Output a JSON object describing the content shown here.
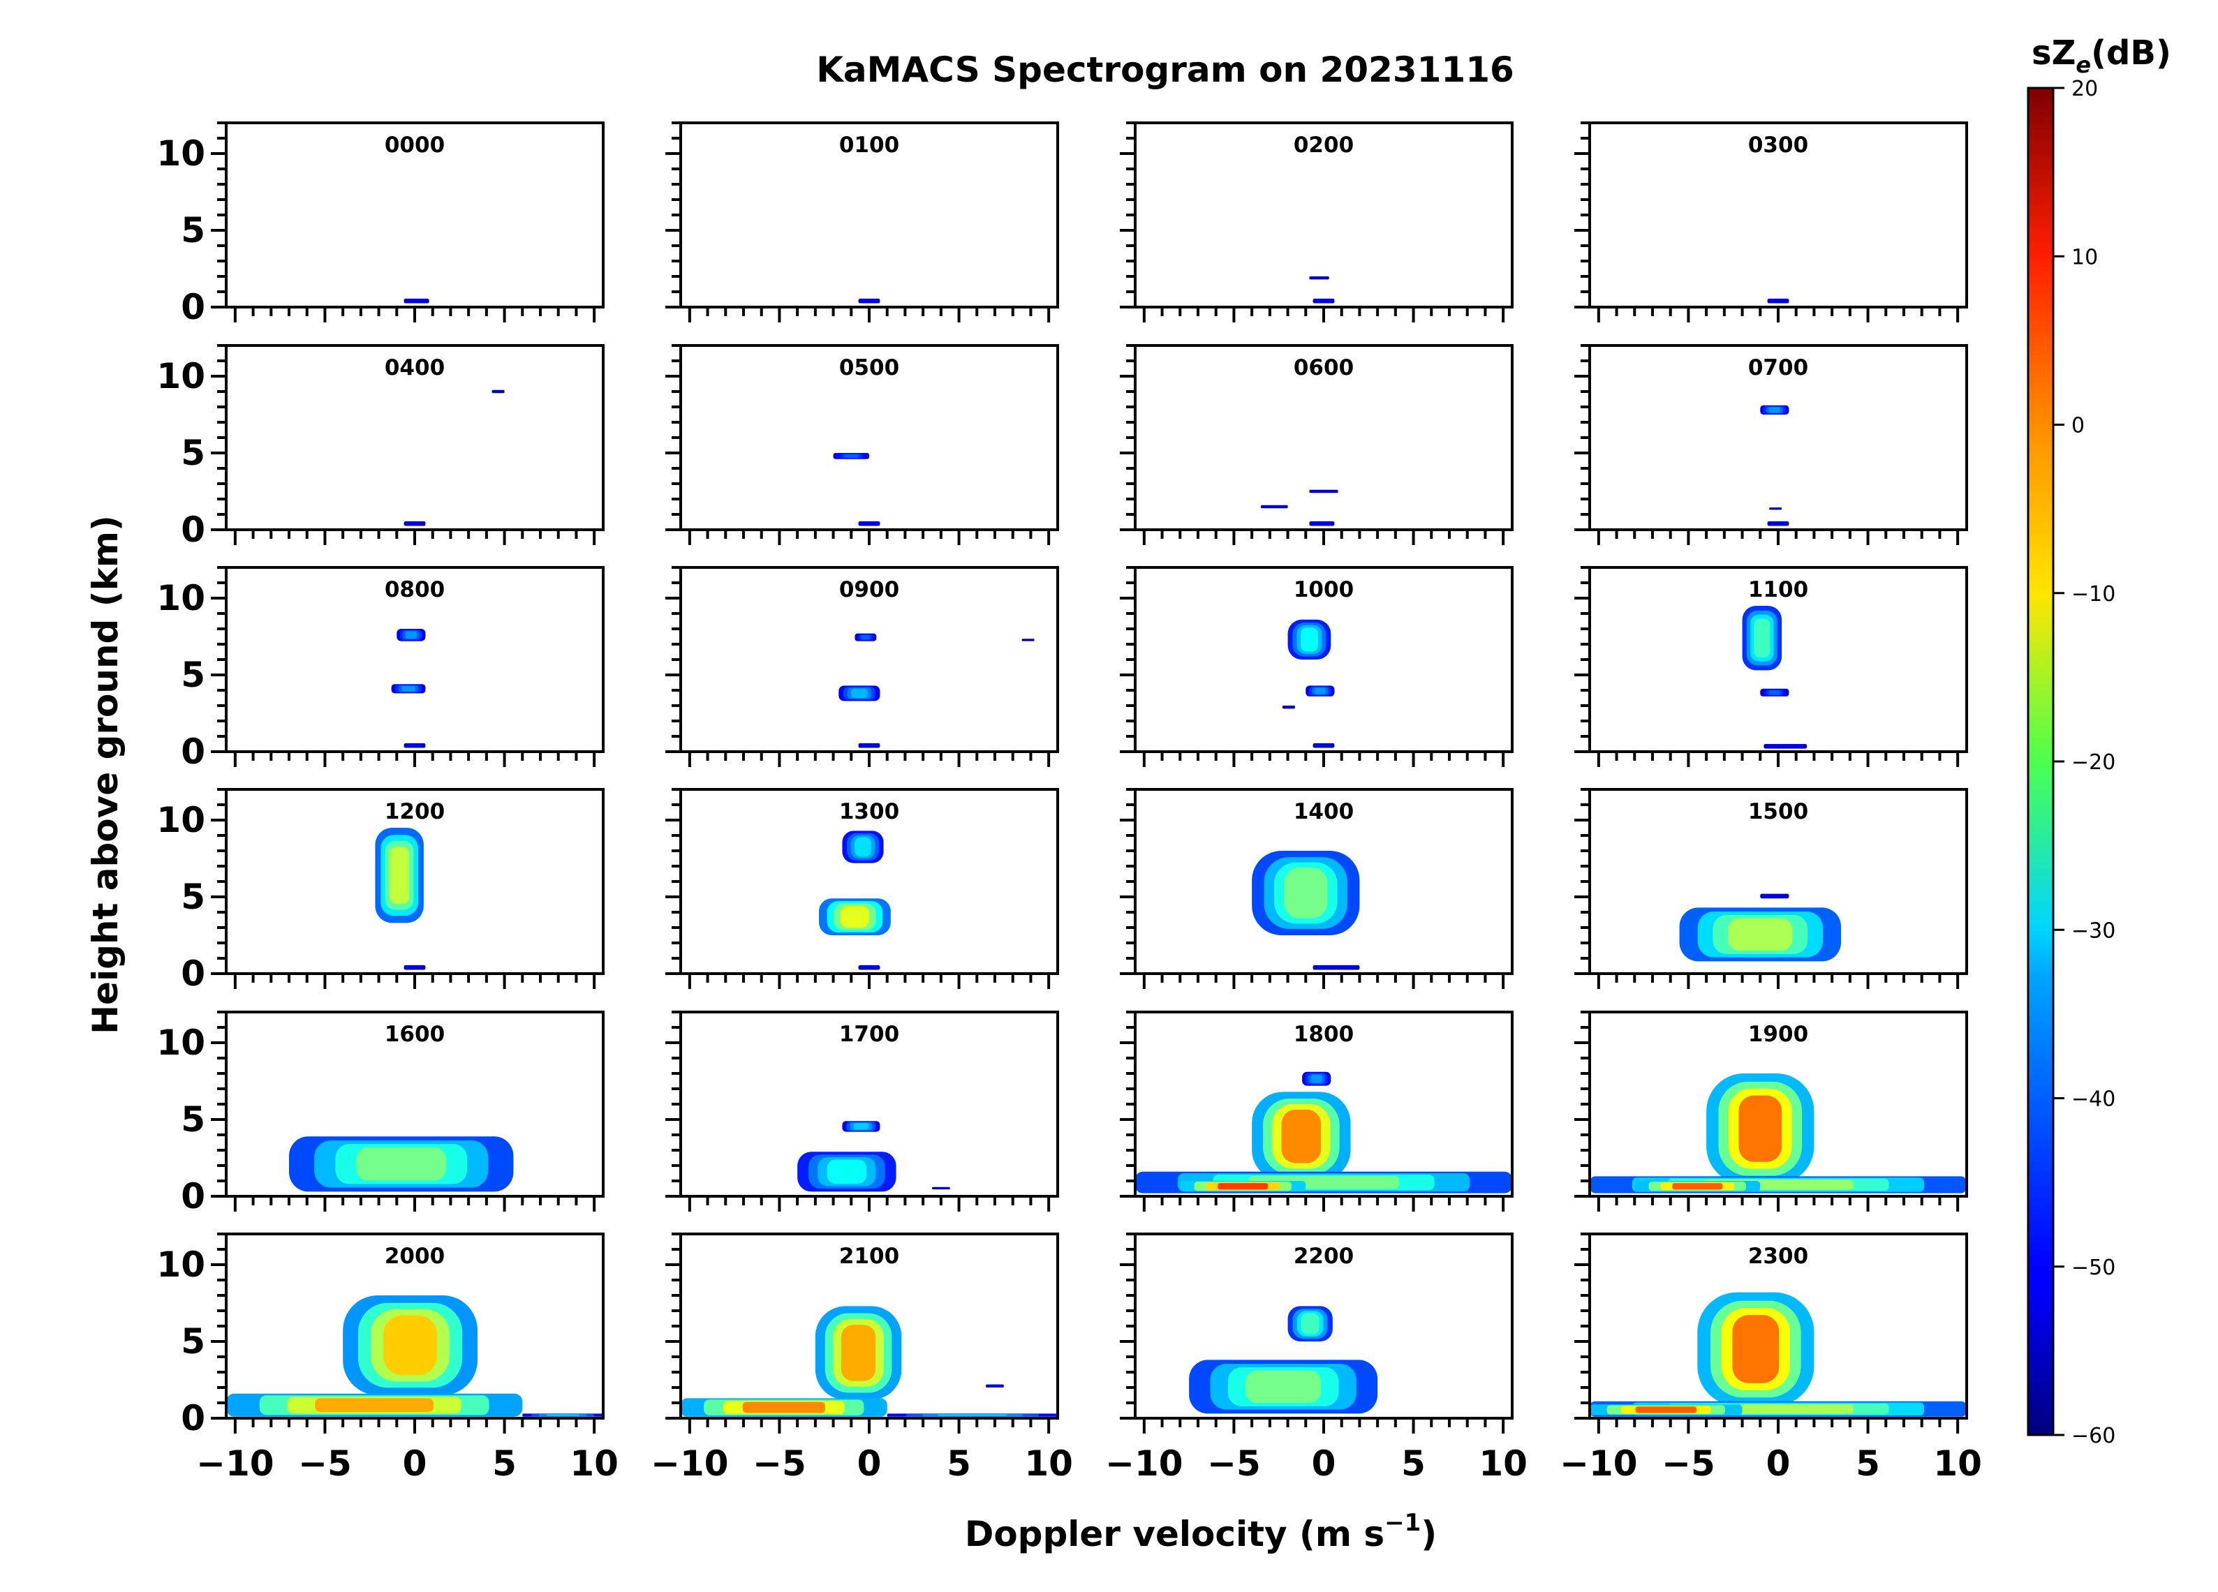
{
  "chart_data": {
    "type": "heatmap",
    "title": "KaMACS Spectrogram on 20231116",
    "xlabel": "Doppler velocity (m s",
    "xlabel_sup": "−1",
    "xlabel_end": ")",
    "ylabel": "Height above ground (km)",
    "xlim": [
      -10.5,
      10.5
    ],
    "ylim": [
      0,
      12
    ],
    "x_ticks": [
      -10,
      -5,
      0,
      5,
      10
    ],
    "x_tick_labels": [
      "−10",
      "−5",
      "0",
      "5",
      "10"
    ],
    "y_ticks": [
      0,
      5,
      10
    ],
    "y_tick_labels": [
      "0",
      "5",
      "10"
    ],
    "colorbar": {
      "label_main": "sZ",
      "label_sub": "e",
      "label_end": "(dB)",
      "min": -60,
      "max": 20,
      "ticks": [
        20,
        10,
        0,
        -10,
        -20,
        -30,
        -40,
        -50,
        -60
      ],
      "tick_labels": [
        "20",
        "10",
        "0",
        "−10",
        "−20",
        "−30",
        "−40",
        "−50",
        "−60"
      ],
      "colormap": "jet"
    },
    "panels": [
      {
        "label": "0000",
        "blobs": [
          {
            "h0": 0.25,
            "h1": 0.55,
            "xmin": -0.6,
            "xmax": 0.8,
            "peak": -45
          }
        ]
      },
      {
        "label": "0100",
        "blobs": [
          {
            "h0": 0.25,
            "h1": 0.55,
            "xmin": -0.6,
            "xmax": 0.6,
            "peak": -45
          }
        ]
      },
      {
        "label": "0200",
        "blobs": [
          {
            "h0": 1.8,
            "h1": 2.0,
            "xmin": -0.8,
            "xmax": 0.3,
            "peak": -50
          },
          {
            "h0": 0.25,
            "h1": 0.55,
            "xmin": -0.6,
            "xmax": 0.6,
            "peak": -45
          }
        ]
      },
      {
        "label": "0300",
        "blobs": [
          {
            "h0": 0.25,
            "h1": 0.55,
            "xmin": -0.6,
            "xmax": 0.6,
            "peak": -45
          }
        ]
      },
      {
        "label": "0400",
        "blobs": [
          {
            "h0": 8.9,
            "h1": 9.1,
            "xmin": 4.3,
            "xmax": 5.0,
            "peak": -52
          },
          {
            "h0": 0.25,
            "h1": 0.55,
            "xmin": -0.6,
            "xmax": 0.6,
            "peak": -45
          }
        ]
      },
      {
        "label": "0500",
        "blobs": [
          {
            "h0": 4.6,
            "h1": 5.0,
            "xmin": -2.0,
            "xmax": 0.0,
            "peak": -40
          },
          {
            "h0": 0.25,
            "h1": 0.55,
            "xmin": -0.6,
            "xmax": 0.6,
            "peak": -45
          }
        ]
      },
      {
        "label": "0600",
        "blobs": [
          {
            "h0": 2.4,
            "h1": 2.6,
            "xmin": -0.8,
            "xmax": 0.8,
            "peak": -50
          },
          {
            "h0": 1.4,
            "h1": 1.6,
            "xmin": -3.5,
            "xmax": -2.0,
            "peak": -50
          },
          {
            "h0": 0.25,
            "h1": 0.55,
            "xmin": -0.8,
            "xmax": 0.6,
            "peak": -45
          }
        ]
      },
      {
        "label": "0700",
        "blobs": [
          {
            "h0": 7.5,
            "h1": 8.1,
            "xmin": -1.0,
            "xmax": 0.6,
            "peak": -35
          },
          {
            "h0": 1.3,
            "h1": 1.45,
            "xmin": -0.5,
            "xmax": 0.2,
            "peak": -50
          },
          {
            "h0": 0.25,
            "h1": 0.55,
            "xmin": -0.6,
            "xmax": 0.6,
            "peak": -45
          }
        ]
      },
      {
        "label": "0800",
        "blobs": [
          {
            "h0": 7.2,
            "h1": 8.0,
            "xmin": -1.0,
            "xmax": 0.6,
            "peak": -35
          },
          {
            "h0": 3.8,
            "h1": 4.4,
            "xmin": -1.3,
            "xmax": 0.6,
            "peak": -35
          },
          {
            "h0": 0.25,
            "h1": 0.55,
            "xmin": -0.6,
            "xmax": 0.6,
            "peak": -45
          }
        ]
      },
      {
        "label": "0900",
        "blobs": [
          {
            "h0": 7.2,
            "h1": 7.7,
            "xmin": -0.8,
            "xmax": 0.4,
            "peak": -40
          },
          {
            "h0": 3.3,
            "h1": 4.3,
            "xmin": -1.7,
            "xmax": 0.6,
            "peak": -32
          },
          {
            "h0": 7.2,
            "h1": 7.35,
            "xmin": 8.5,
            "xmax": 9.2,
            "peak": -55
          },
          {
            "h0": 0.25,
            "h1": 0.55,
            "xmin": -0.6,
            "xmax": 0.6,
            "peak": -45
          }
        ]
      },
      {
        "label": "1000",
        "blobs": [
          {
            "h0": 6.0,
            "h1": 8.6,
            "xmin": -2.0,
            "xmax": 0.4,
            "peak": -25
          },
          {
            "h0": 3.6,
            "h1": 4.3,
            "xmin": -1.0,
            "xmax": 0.6,
            "peak": -35
          },
          {
            "h0": 2.8,
            "h1": 3.0,
            "xmin": -2.3,
            "xmax": -1.6,
            "peak": -50
          },
          {
            "h0": 0.25,
            "h1": 0.55,
            "xmin": -0.6,
            "xmax": 0.6,
            "peak": -45
          }
        ]
      },
      {
        "label": "1100",
        "blobs": [
          {
            "h0": 5.3,
            "h1": 9.5,
            "xmin": -2.0,
            "xmax": 0.2,
            "peak": -20
          },
          {
            "h0": 3.6,
            "h1": 4.1,
            "xmin": -1.0,
            "xmax": 0.6,
            "peak": -40
          },
          {
            "h0": 0.2,
            "h1": 0.5,
            "xmin": -0.8,
            "xmax": 1.6,
            "peak": -45
          }
        ]
      },
      {
        "label": "1200",
        "blobs": [
          {
            "h0": 3.3,
            "h1": 9.5,
            "xmin": -2.2,
            "xmax": 0.5,
            "peak": -8
          },
          {
            "h0": 0.25,
            "h1": 0.55,
            "xmin": -0.6,
            "xmax": 0.6,
            "peak": -45
          }
        ]
      },
      {
        "label": "1300",
        "blobs": [
          {
            "h0": 7.2,
            "h1": 9.3,
            "xmin": -1.5,
            "xmax": 0.8,
            "peak": -28
          },
          {
            "h0": 2.5,
            "h1": 4.9,
            "xmin": -2.8,
            "xmax": 1.2,
            "peak": -5
          },
          {
            "h0": 0.25,
            "h1": 0.55,
            "xmin": -0.6,
            "xmax": 0.6,
            "peak": -45
          }
        ]
      },
      {
        "label": "1400",
        "blobs": [
          {
            "h0": 2.5,
            "h1": 8.0,
            "xmin": -4.0,
            "xmax": 2.0,
            "peak": -15
          },
          {
            "h0": 0.25,
            "h1": 0.55,
            "xmin": -0.6,
            "xmax": 2.0,
            "peak": -45
          }
        ]
      },
      {
        "label": "1500",
        "blobs": [
          {
            "h0": 0.8,
            "h1": 4.3,
            "xmin": -5.5,
            "xmax": 3.5,
            "peak": -10
          },
          {
            "h0": 4.9,
            "h1": 5.2,
            "xmin": -1.0,
            "xmax": 0.6,
            "peak": -45
          }
        ]
      },
      {
        "label": "1600",
        "blobs": [
          {
            "h0": 0.3,
            "h1": 3.9,
            "xmin": -7.0,
            "xmax": 5.5,
            "peak": -15
          }
        ]
      },
      {
        "label": "1700",
        "blobs": [
          {
            "h0": 4.2,
            "h1": 4.9,
            "xmin": -1.5,
            "xmax": 0.6,
            "peak": -30
          },
          {
            "h0": 0.3,
            "h1": 2.9,
            "xmin": -4.0,
            "xmax": 1.5,
            "peak": -25
          },
          {
            "h0": 0.45,
            "h1": 0.6,
            "xmin": 3.5,
            "xmax": 4.5,
            "peak": -55
          }
        ]
      },
      {
        "label": "1800",
        "blobs": [
          {
            "h0": 7.2,
            "h1": 8.1,
            "xmin": -1.2,
            "xmax": 0.4,
            "peak": -35
          },
          {
            "h0": 1.0,
            "h1": 6.8,
            "xmin": -4.0,
            "xmax": 1.5,
            "peak": 8
          },
          {
            "h0": 0.2,
            "h1": 1.6,
            "xmin": -10.5,
            "xmax": 10.5,
            "peak": -15
          },
          {
            "h0": 0.3,
            "h1": 1.0,
            "xmin": -8.0,
            "xmax": -1.0,
            "peak": 15
          }
        ]
      },
      {
        "label": "1900",
        "blobs": [
          {
            "h0": 0.8,
            "h1": 8.0,
            "xmin": -4.0,
            "xmax": 2.0,
            "peak": 10
          },
          {
            "h0": 0.2,
            "h1": 1.3,
            "xmin": -10.5,
            "xmax": 10.5,
            "peak": -12
          },
          {
            "h0": 0.3,
            "h1": 1.0,
            "xmin": -8.0,
            "xmax": -1.0,
            "peak": 12
          }
        ]
      },
      {
        "label": "2000",
        "blobs": [
          {
            "h0": 1.5,
            "h1": 8.0,
            "xmin": -4.0,
            "xmax": 3.5,
            "peak": 2
          },
          {
            "h0": 0.1,
            "h1": 1.6,
            "xmin": -10.5,
            "xmax": 6.0,
            "peak": 5
          },
          {
            "h0": 0.1,
            "h1": 0.3,
            "xmin": 6.0,
            "xmax": 10.5,
            "peak": -30
          }
        ]
      },
      {
        "label": "2100",
        "blobs": [
          {
            "h0": 1.2,
            "h1": 7.3,
            "xmin": -3.0,
            "xmax": 1.8,
            "peak": 5
          },
          {
            "h0": 0.1,
            "h1": 1.3,
            "xmin": -10.5,
            "xmax": 1.0,
            "peak": 8
          },
          {
            "h0": 0.1,
            "h1": 0.3,
            "xmin": 1.0,
            "xmax": 10.5,
            "peak": -30
          },
          {
            "h0": 2.0,
            "h1": 2.2,
            "xmin": 6.5,
            "xmax": 7.5,
            "peak": -45
          }
        ]
      },
      {
        "label": "2200",
        "blobs": [
          {
            "h0": 5.0,
            "h1": 7.3,
            "xmin": -2.0,
            "xmax": 0.5,
            "peak": -20
          },
          {
            "h0": 0.3,
            "h1": 3.8,
            "xmin": -7.5,
            "xmax": 3.0,
            "peak": -15
          }
        ]
      },
      {
        "label": "2300",
        "blobs": [
          {
            "h0": 0.8,
            "h1": 8.2,
            "xmin": -4.5,
            "xmax": 2.0,
            "peak": 10
          },
          {
            "h0": 0.1,
            "h1": 1.1,
            "xmin": -10.5,
            "xmax": 10.5,
            "peak": -10
          },
          {
            "h0": 0.2,
            "h1": 0.9,
            "xmin": -10.5,
            "xmax": -2.0,
            "peak": 12
          }
        ]
      }
    ]
  }
}
